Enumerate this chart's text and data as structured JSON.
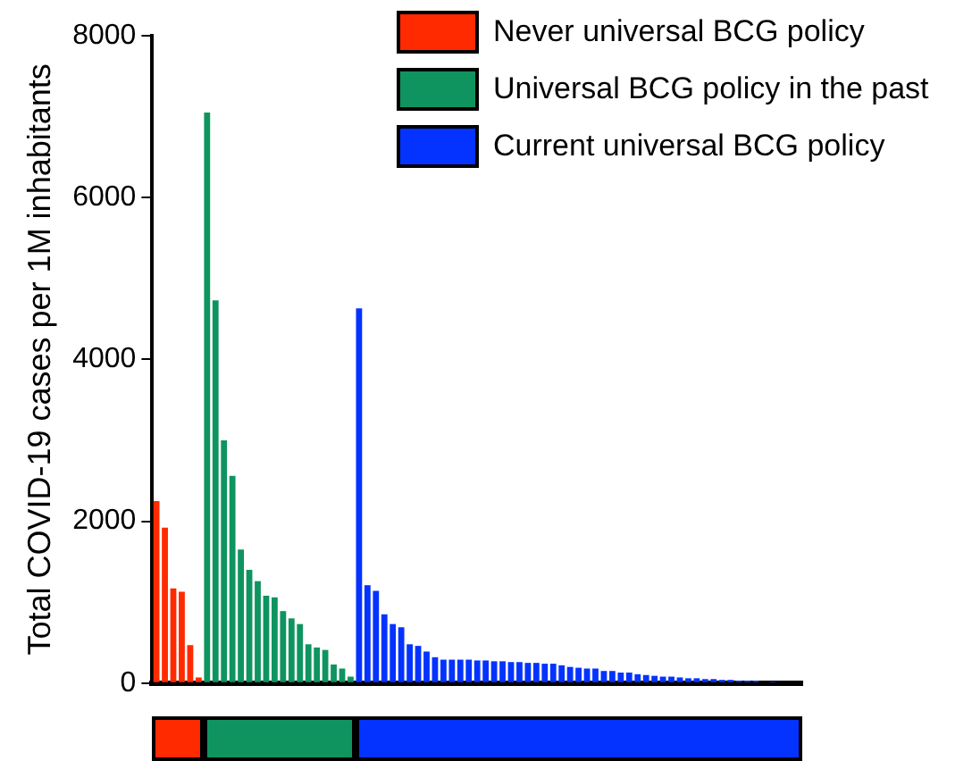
{
  "chart_data": {
    "type": "bar",
    "ylabel": "Total COVID-19 cases per 1M inhabitants",
    "categories": [
      null,
      null,
      null,
      null,
      null,
      null,
      null,
      null,
      null,
      null,
      null,
      null,
      null,
      null,
      null,
      null,
      null,
      null,
      null,
      null,
      null,
      null,
      null,
      null,
      null,
      null,
      null,
      null,
      null,
      null,
      null,
      null,
      null,
      null,
      null,
      null,
      null,
      null,
      null,
      null,
      null,
      null,
      null,
      null,
      null,
      null,
      null,
      null,
      null,
      null,
      null,
      null,
      null,
      null,
      null,
      null,
      null,
      null,
      null,
      null,
      null,
      null,
      null,
      null,
      null,
      null,
      null,
      null,
      null,
      null,
      null,
      null,
      null,
      null,
      null,
      null,
      null
    ],
    "series": [
      {
        "name": "Never universal BCG policy",
        "color": "#ff2a00",
        "values": [
          2250,
          1920,
          1170,
          1130,
          470,
          70,
          null,
          null,
          null,
          null,
          null,
          null,
          null,
          null,
          null,
          null,
          null,
          null,
          null,
          null,
          null,
          null,
          null,
          null,
          null,
          null,
          null,
          null,
          null,
          null,
          null,
          null,
          null,
          null,
          null,
          null,
          null,
          null,
          null,
          null,
          null,
          null,
          null,
          null,
          null,
          null,
          null,
          null,
          null,
          null,
          null,
          null,
          null,
          null,
          null,
          null,
          null,
          null,
          null,
          null,
          null,
          null,
          null,
          null,
          null,
          null,
          null,
          null,
          null,
          null,
          null,
          null,
          null,
          null,
          null,
          null,
          null
        ]
      },
      {
        "name": "Universal BCG policy in the past",
        "color": "#0f9460",
        "values": [
          null,
          null,
          null,
          null,
          null,
          null,
          7050,
          4730,
          3000,
          2560,
          1650,
          1400,
          1260,
          1080,
          1060,
          890,
          800,
          730,
          480,
          440,
          410,
          230,
          180,
          80,
          null,
          null,
          null,
          null,
          null,
          null,
          null,
          null,
          null,
          null,
          null,
          null,
          null,
          null,
          null,
          null,
          null,
          null,
          null,
          null,
          null,
          null,
          null,
          null,
          null,
          null,
          null,
          null,
          null,
          null,
          null,
          null,
          null,
          null,
          null,
          null,
          null,
          null,
          null,
          null,
          null,
          null,
          null,
          null,
          null,
          null,
          null,
          null,
          null,
          null,
          null,
          null,
          null
        ]
      },
      {
        "name": "Current universal BCG policy",
        "color": "#0433ff",
        "values": [
          null,
          null,
          null,
          null,
          null,
          null,
          null,
          null,
          null,
          null,
          null,
          null,
          null,
          null,
          null,
          null,
          null,
          null,
          null,
          null,
          null,
          null,
          null,
          null,
          4630,
          1210,
          1140,
          850,
          730,
          690,
          480,
          460,
          390,
          320,
          290,
          290,
          290,
          290,
          280,
          280,
          270,
          270,
          260,
          260,
          250,
          250,
          240,
          240,
          220,
          200,
          190,
          180,
          180,
          150,
          150,
          130,
          130,
          110,
          100,
          90,
          80,
          80,
          70,
          60,
          60,
          50,
          50,
          40,
          40,
          30,
          30,
          30,
          null,
          20,
          null,
          null,
          null
        ]
      }
    ],
    "ylim": [
      0,
      8000
    ],
    "yticks": [
      0,
      2000,
      4000,
      6000,
      8000
    ],
    "grid": false,
    "legend": "top right"
  }
}
